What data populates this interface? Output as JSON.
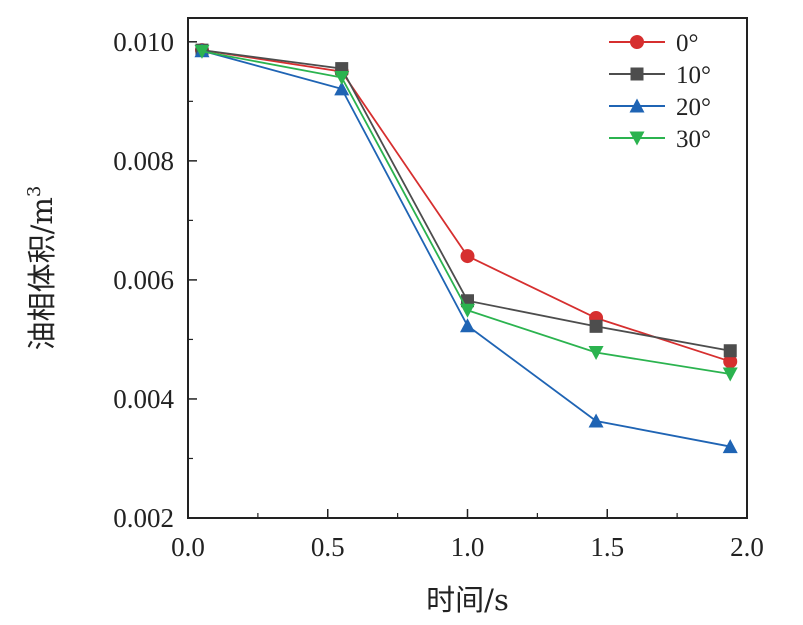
{
  "chart_data": {
    "type": "line",
    "xlabel": "时间/s",
    "ylabel_main": "油相体积/m",
    "ylabel_sup": "3",
    "xlim": [
      0.0,
      2.0
    ],
    "ylim": [
      0.002,
      0.0104
    ],
    "x_ticks": [
      "0.0",
      "0.5",
      "1.0",
      "1.5",
      "2.0"
    ],
    "y_ticks": [
      "0.002",
      "0.004",
      "0.006",
      "0.008",
      "0.010"
    ],
    "x": [
      0.05,
      0.55,
      1.0,
      1.46,
      1.94
    ],
    "legend_position": "top-right",
    "series": [
      {
        "name": "0°",
        "color": "#d62f2f",
        "marker": "circle",
        "values": [
          0.00986,
          0.0095,
          0.0064,
          0.00536,
          0.00463
        ]
      },
      {
        "name": "10°",
        "color": "#4d4d4d",
        "marker": "square",
        "values": [
          0.00986,
          0.00955,
          0.00565,
          0.00522,
          0.00481
        ]
      },
      {
        "name": "20°",
        "color": "#1f64b4",
        "marker": "triangle-up",
        "values": [
          0.00985,
          0.00921,
          0.00523,
          0.00363,
          0.0032
        ]
      },
      {
        "name": "30°",
        "color": "#2bb34f",
        "marker": "triangle-down",
        "values": [
          0.00984,
          0.0094,
          0.00549,
          0.00478,
          0.00442
        ]
      }
    ]
  }
}
